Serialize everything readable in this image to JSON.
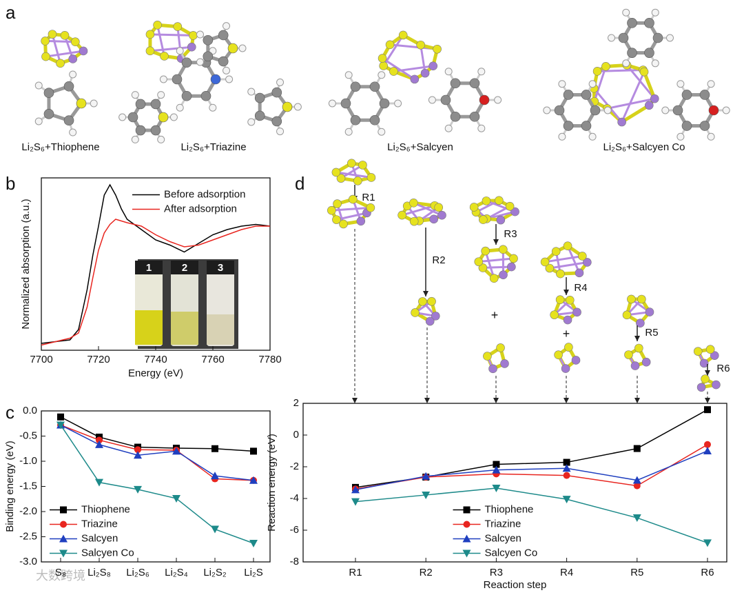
{
  "figure": {
    "panel_labels": [
      "a",
      "b",
      "c",
      "d"
    ],
    "structure_labels": [
      "Li₂S₆+Thiophene",
      "Li₂S₆+Triazine",
      "Li₂S₆+Salcyen",
      "Li₂S₆+Salcyen Co"
    ],
    "inset_labels": [
      "1",
      "2",
      "3"
    ],
    "reaction_labels": [
      "R1",
      "R2",
      "R3",
      "R4",
      "R5",
      "R6"
    ],
    "plus_signs": [
      "+",
      "+"
    ],
    "watermark": "大数跨境"
  },
  "chart_data": [
    {
      "type": "line",
      "x_label": "Energy (eV)",
      "y_label": "Normalized absorption (a.u.)",
      "x": [
        7700,
        7705,
        7710,
        7713,
        7716,
        7718,
        7720,
        7722,
        7724,
        7726,
        7728,
        7730,
        7735,
        7740,
        7745,
        7750,
        7755,
        7760,
        7765,
        7770,
        7775,
        7780
      ],
      "series": [
        {
          "name": "Before adsorption",
          "color": "#000000",
          "values": [
            0.04,
            0.05,
            0.06,
            0.12,
            0.35,
            0.55,
            0.72,
            0.9,
            0.96,
            0.9,
            0.82,
            0.76,
            0.7,
            0.64,
            0.61,
            0.57,
            0.62,
            0.67,
            0.7,
            0.72,
            0.73,
            0.72
          ]
        },
        {
          "name": "After adsorption",
          "color": "#e8251f",
          "values": [
            0.03,
            0.05,
            0.07,
            0.1,
            0.25,
            0.42,
            0.58,
            0.68,
            0.73,
            0.76,
            0.75,
            0.74,
            0.72,
            0.67,
            0.63,
            0.6,
            0.61,
            0.64,
            0.67,
            0.7,
            0.72,
            0.72
          ]
        }
      ],
      "xlim": [
        7700,
        7780
      ],
      "xticks": [
        7700,
        7720,
        7740,
        7760,
        7780
      ],
      "ylim": [
        0,
        1
      ],
      "legend": "upper right"
    },
    {
      "type": "line",
      "y_label": "Binding energy (eV)",
      "categories": [
        "S₈",
        "Li₂S₈",
        "Li₂S₆",
        "Li₂S₄",
        "Li₂S₂",
        "Li₂S"
      ],
      "series": [
        {
          "name": "Thiophene",
          "color": "#000000",
          "marker": "square",
          "values": [
            -0.12,
            -0.52,
            -0.72,
            -0.74,
            -0.75,
            -0.8
          ]
        },
        {
          "name": "Triazine",
          "color": "#e8251f",
          "marker": "circle",
          "values": [
            -0.28,
            -0.58,
            -0.77,
            -0.78,
            -1.35,
            -1.38
          ]
        },
        {
          "name": "Salcyen",
          "color": "#1f3fbf",
          "marker": "triangle-up",
          "values": [
            -0.28,
            -0.67,
            -0.88,
            -0.8,
            -1.29,
            -1.38
          ]
        },
        {
          "name": "Salcyen Co",
          "color": "#1d8a8a",
          "marker": "triangle-down",
          "values": [
            -0.28,
            -1.42,
            -1.56,
            -1.74,
            -2.35,
            -2.63
          ]
        }
      ],
      "ylim": [
        -3.0,
        0.0
      ],
      "yticks": [
        {
          "value": -3.0,
          "label": "-3.0"
        },
        -2.5,
        {
          "value": -2.0,
          "label": "-2.0"
        },
        -1.5,
        {
          "value": -1.0,
          "label": "-1.0"
        },
        -0.5,
        {
          "value": 0.0,
          "label": "0.0"
        }
      ],
      "legend": "lower left"
    },
    {
      "type": "line",
      "x_label": "Reaction step",
      "y_label": "Reaction energy (eV)",
      "categories": [
        "R1",
        "R2",
        "R3",
        "R4",
        "R5",
        "R6"
      ],
      "series": [
        {
          "name": "Thiophene",
          "color": "#000000",
          "marker": "square",
          "values": [
            -3.3,
            -2.65,
            -1.85,
            -1.72,
            -0.85,
            1.6
          ]
        },
        {
          "name": "Triazine",
          "color": "#e8251f",
          "marker": "circle",
          "values": [
            -3.4,
            -2.65,
            -2.45,
            -2.55,
            -3.2,
            -0.6
          ]
        },
        {
          "name": "Salcyen",
          "color": "#1f3fbf",
          "marker": "triangle-up",
          "values": [
            -3.45,
            -2.6,
            -2.2,
            -2.1,
            -2.85,
            -1.0
          ]
        },
        {
          "name": "Salcyen Co",
          "color": "#1d8a8a",
          "marker": "triangle-down",
          "values": [
            -4.2,
            -3.78,
            -3.35,
            -4.05,
            -5.22,
            -6.8
          ]
        }
      ],
      "ylim": [
        -8,
        2
      ],
      "yticks": [
        -8,
        -6,
        -4,
        -2,
        0,
        2
      ],
      "legend": "lower center"
    }
  ]
}
